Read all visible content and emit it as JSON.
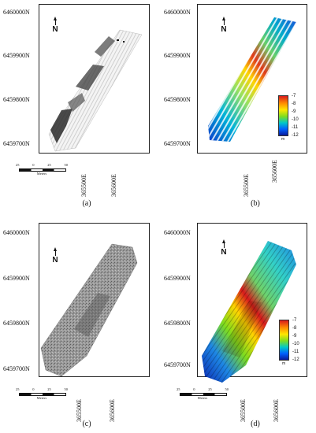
{
  "north_label": "N",
  "scale": {
    "ticks": [
      "25",
      "0",
      "25",
      "50"
    ],
    "unit": "Meters"
  },
  "axes": {
    "y_labels": [
      "6460000N",
      "6459900N",
      "6459800N",
      "6459700N"
    ],
    "x_labels": [
      "365500E",
      "365600E"
    ]
  },
  "legend": {
    "values": [
      "-7",
      "-8",
      "-9",
      "-10",
      "-11",
      "-12"
    ],
    "unit": "m"
  },
  "panels": [
    {
      "id": "a",
      "caption": "(a)",
      "kind": "backscatter-strips"
    },
    {
      "id": "b",
      "caption": "(b)",
      "kind": "bathymetry-strips"
    },
    {
      "id": "c",
      "caption": "(c)",
      "kind": "backscatter-mosaic"
    },
    {
      "id": "d",
      "caption": "(d)",
      "kind": "bathymetry-mosaic"
    }
  ],
  "colors": {
    "frame": "#222222",
    "deep": "#0a1a9a",
    "shallow": "#d7191c"
  }
}
